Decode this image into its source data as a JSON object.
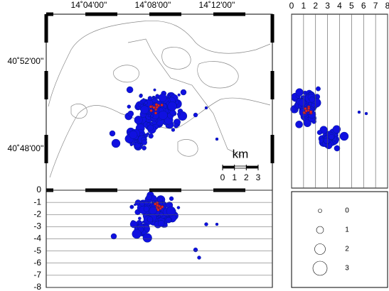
{
  "map": {
    "x_labels": [
      "14˚04'00''",
      "14˚08'00''",
      "14˚12'00''"
    ],
    "y_labels": [
      "40˚52'00''",
      "40˚48'00''"
    ],
    "scale_unit": "km",
    "scale_ticks": [
      0,
      1,
      2,
      3
    ]
  },
  "depth_section": {
    "ylim": [
      0,
      -8
    ],
    "yticks": [
      0,
      -1,
      -2,
      -3,
      -4,
      -5,
      -6,
      -7,
      -8
    ]
  },
  "latitude_section": {
    "xlim": [
      0,
      8
    ],
    "xticks": [
      0,
      1,
      2,
      3,
      4,
      5,
      6,
      7,
      8
    ]
  },
  "legend": {
    "magnitudes": [
      0,
      1,
      2,
      3
    ]
  }
}
